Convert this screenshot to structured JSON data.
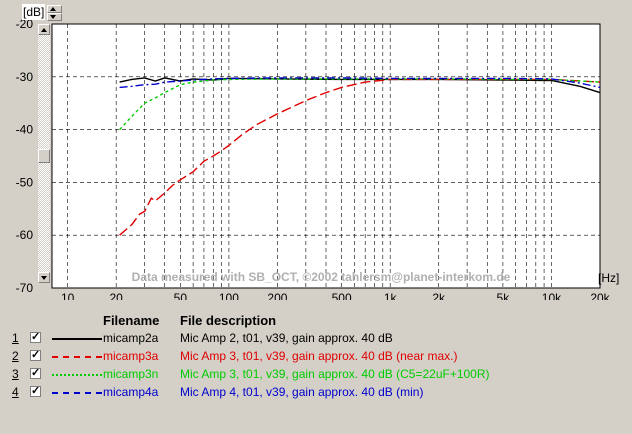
{
  "header": {
    "y_unit": "[dB]"
  },
  "footer": {
    "x_unit": "[Hz]"
  },
  "chart_data": {
    "type": "line",
    "xscale": "log",
    "xlim": [
      8,
      20000
    ],
    "ylim": [
      -70,
      -20
    ],
    "grid": true,
    "y_ticks": [
      "-20",
      "-30",
      "-40",
      "-50",
      "-60",
      "-70"
    ],
    "y_tick_values": [
      -20,
      -30,
      -40,
      -50,
      -60,
      -70
    ],
    "x_ticks": [
      "10",
      "20",
      "50",
      "100",
      "200",
      "500",
      "1k",
      "2k",
      "5k",
      "10k",
      "20k"
    ],
    "x_tick_values": [
      10,
      20,
      50,
      100,
      200,
      500,
      1000,
      2000,
      5000,
      10000,
      20000
    ],
    "watermark": "Data measured with SB_OCT, ©2002 tahlersm@planet-interkom.de",
    "series": [
      {
        "name": "micamp2a",
        "color": "#000000",
        "dash": "solid",
        "x": [
          21,
          25,
          30,
          35,
          40,
          50,
          60,
          80,
          100,
          200,
          500,
          1000,
          2000,
          5000,
          10000,
          15000,
          20000
        ],
        "y": [
          -31,
          -30.5,
          -30.2,
          -30.8,
          -30.2,
          -30.8,
          -30.4,
          -30.6,
          -30.3,
          -30.4,
          -30.5,
          -30.5,
          -30.5,
          -30.6,
          -30.7,
          -31.8,
          -33
        ]
      },
      {
        "name": "micamp3a",
        "color": "#e00000",
        "dash": "long",
        "x": [
          21,
          25,
          28,
          30,
          33,
          35,
          40,
          45,
          50,
          60,
          70,
          80,
          90,
          100,
          120,
          150,
          200,
          300,
          400,
          500,
          700,
          1000,
          2000,
          5000,
          10000,
          15000,
          20000
        ],
        "y": [
          -60,
          -58,
          -56,
          -55.5,
          -53,
          -53.5,
          -52,
          -50.5,
          -49.5,
          -48,
          -46,
          -45,
          -44,
          -43,
          -41,
          -39,
          -37,
          -34.5,
          -33,
          -32,
          -31,
          -30.5,
          -30.5,
          -30.5,
          -30.5,
          -30.8,
          -31
        ]
      },
      {
        "name": "micamp3n",
        "color": "#00cc00",
        "dash": "short",
        "x": [
          21,
          25,
          30,
          35,
          40,
          50,
          60,
          80,
          100,
          200,
          500,
          1000,
          2000,
          5000,
          10000,
          15000,
          20000
        ],
        "y": [
          -40,
          -37.5,
          -35,
          -34,
          -33,
          -31.5,
          -31,
          -30.6,
          -30.5,
          -30.4,
          -30.4,
          -30.4,
          -30.4,
          -30.5,
          -30.5,
          -30.8,
          -31
        ]
      },
      {
        "name": "micamp4a",
        "color": "#0000cc",
        "dash": "dashdot",
        "x": [
          21,
          25,
          30,
          35,
          40,
          50,
          60,
          80,
          100,
          200,
          500,
          1000,
          2000,
          5000,
          10000,
          15000,
          20000
        ],
        "y": [
          -32,
          -31.8,
          -31.5,
          -31.4,
          -31.0,
          -30.8,
          -30.6,
          -30.4,
          -30.3,
          -30.2,
          -30.2,
          -30.3,
          -30.3,
          -30.3,
          -30.4,
          -31.2,
          -32
        ]
      }
    ]
  },
  "legend": {
    "header_filename": "Filename",
    "header_desc": "File description",
    "rows": [
      {
        "num": "1",
        "name": "micamp2a",
        "desc": "Mic Amp 2, t01, v39, gain approx. 40 dB",
        "color": "#000000"
      },
      {
        "num": "2",
        "name": "micamp3a",
        "desc": "Mic Amp 3, t01, v39, gain approx. 40 dB (near max.)",
        "color": "#e00000"
      },
      {
        "num": "3",
        "name": "micamp3n",
        "desc": "Mic Amp 3, t01, v39, gain approx. 40 dB (C5=22uF+100R)",
        "color": "#00cc00"
      },
      {
        "num": "4",
        "name": "micamp4a",
        "desc": "Mic Amp 4, t01, v39, gain approx. 40 dB (min)",
        "color": "#0000cc"
      }
    ]
  }
}
